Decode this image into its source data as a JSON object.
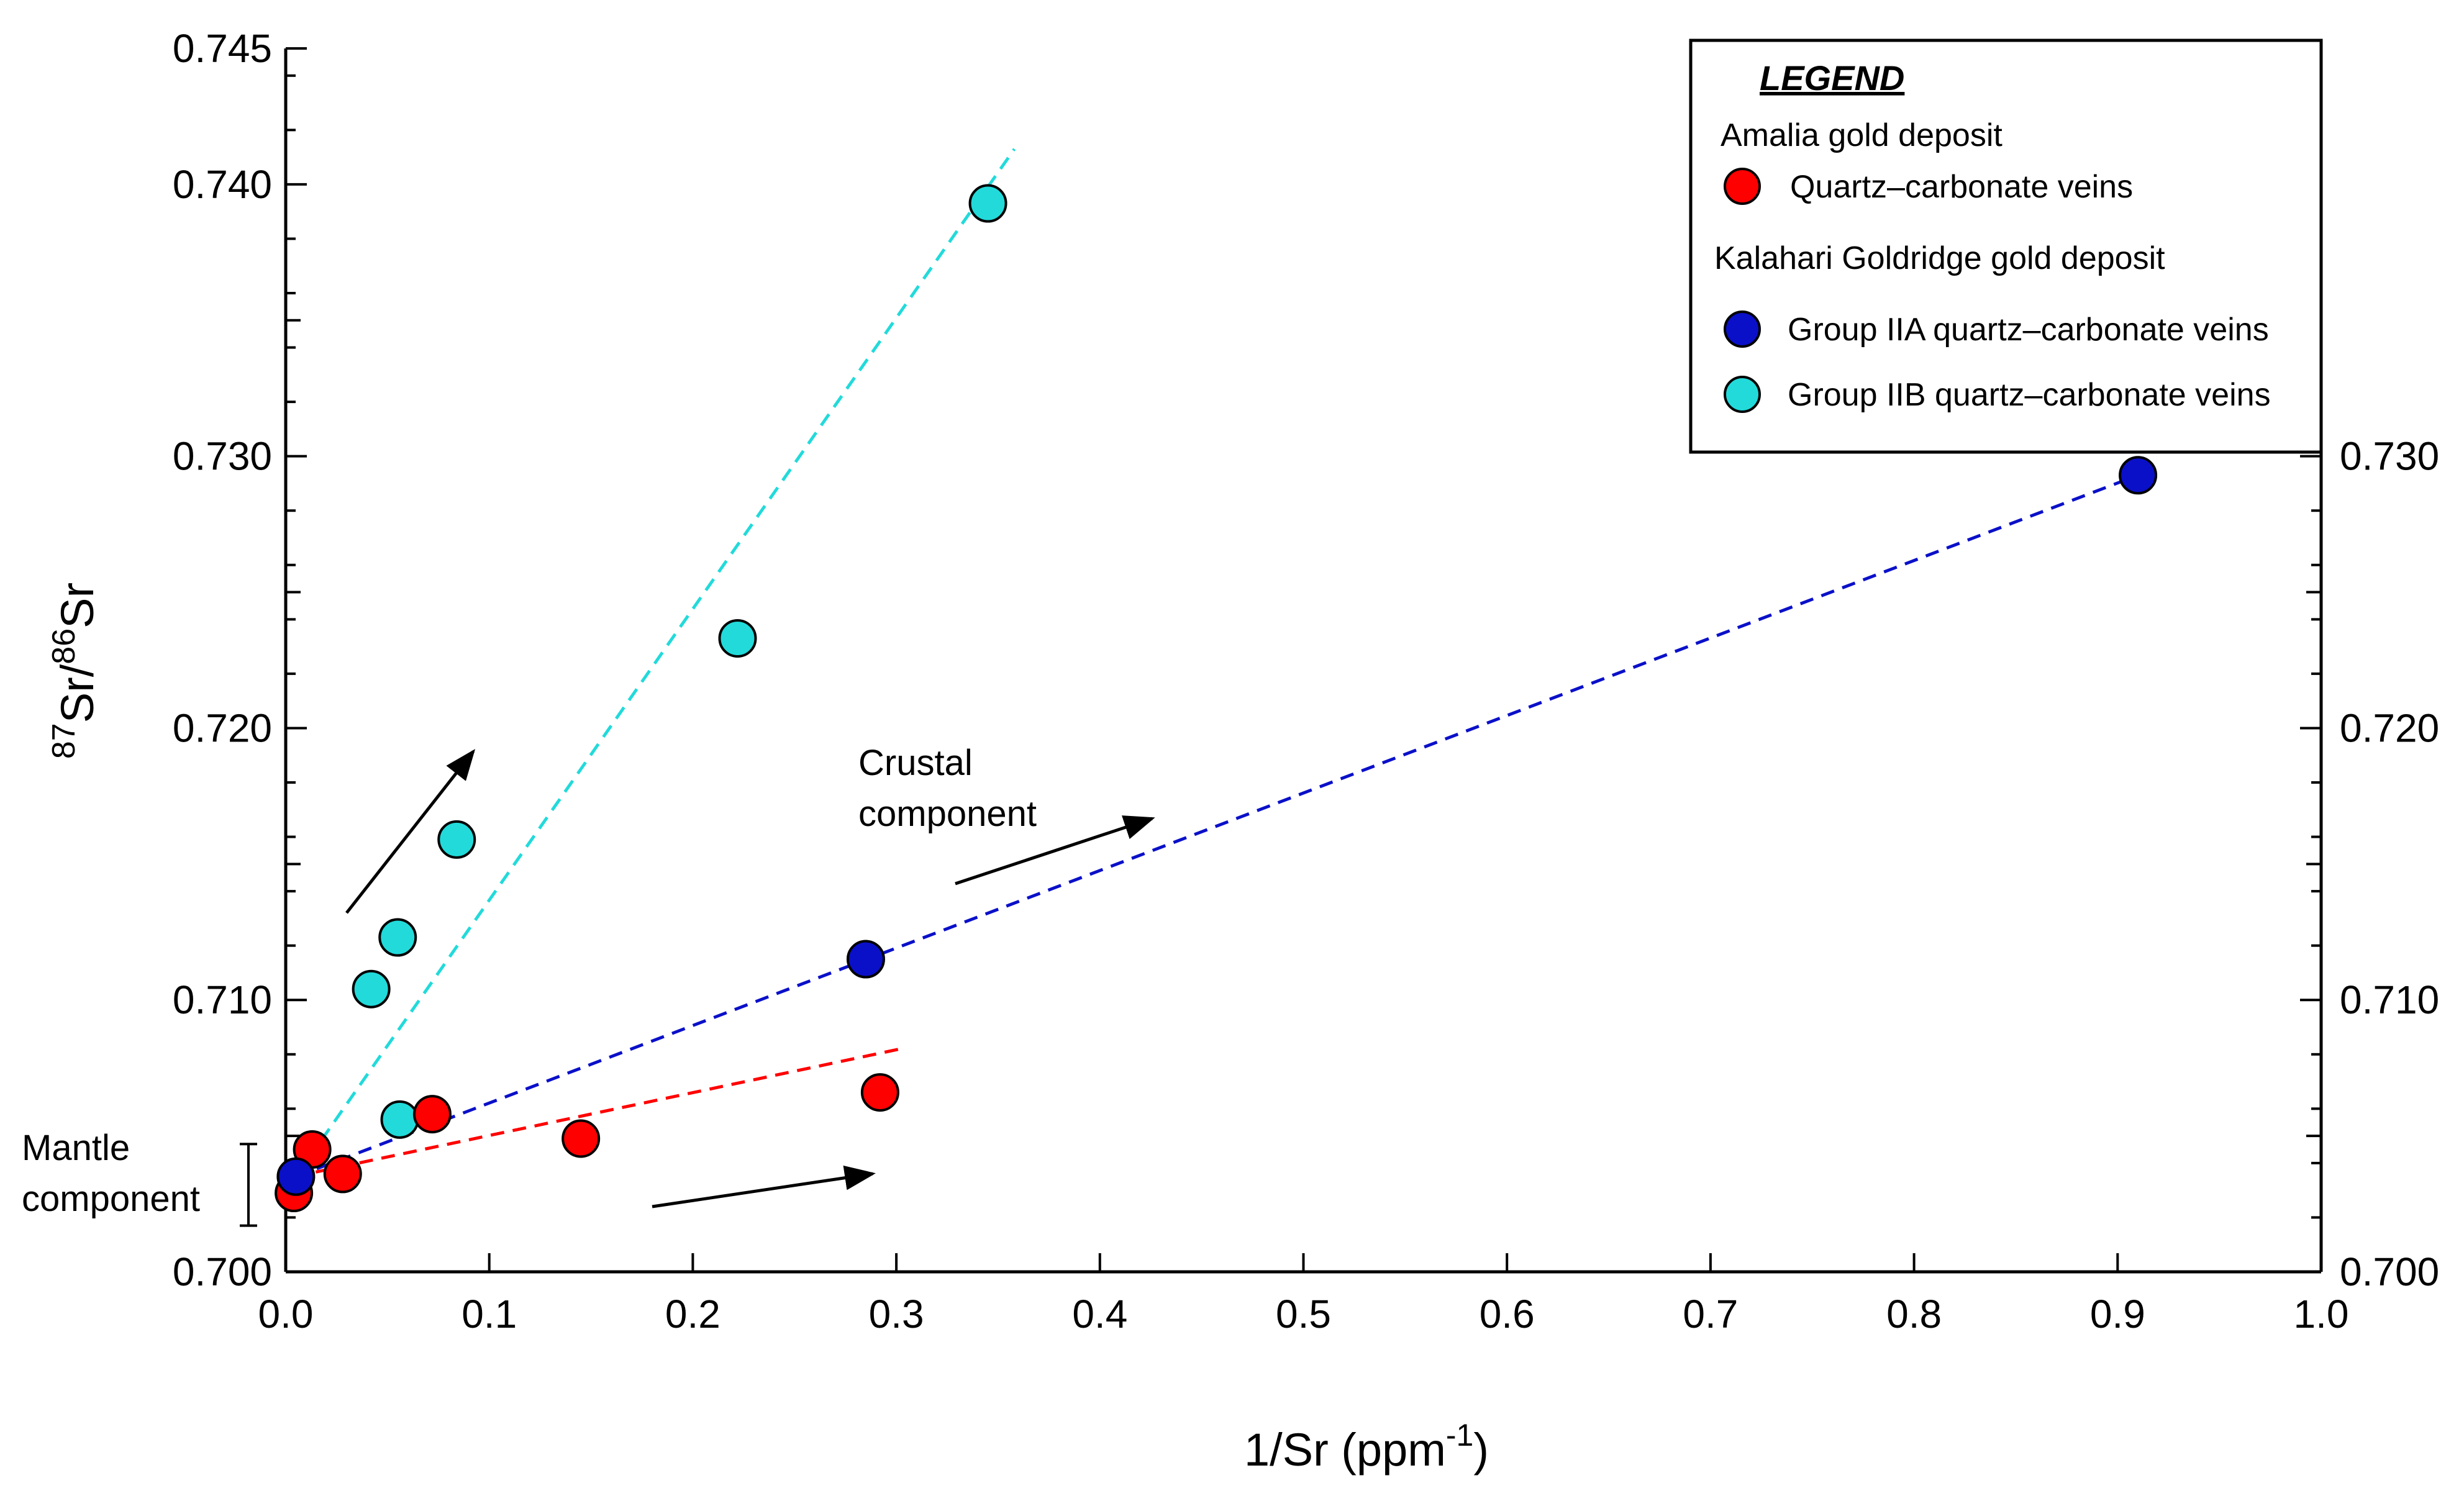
{
  "chart_data": {
    "type": "scatter",
    "xlabel": {
      "base": "1/Sr (ppm",
      "sup": "-1",
      "tail": ")"
    },
    "ylabel": {
      "sup1": "87",
      "mid": "Sr/",
      "sup2": "86",
      "tail": "Sr"
    },
    "xlim": [
      0.0,
      1.0
    ],
    "ylim": [
      0.7,
      0.745
    ],
    "x_ticks": [
      "0.0",
      "0.1",
      "0.2",
      "0.3",
      "0.4",
      "0.5",
      "0.6",
      "0.7",
      "0.8",
      "0.9",
      "1.0"
    ],
    "y_ticks": [
      "0.700",
      "0.710",
      "0.720",
      "0.730",
      "0.740",
      "0.745"
    ],
    "y_ticks_right": [
      "0.700",
      "0.710",
      "0.720",
      "0.730"
    ],
    "grid": false,
    "legend": {
      "heading": "LEGEND",
      "group1_title": "Amalia gold deposit",
      "group2_title": "Kalahari Goldridge gold deposit",
      "position": "top-right"
    },
    "series": [
      {
        "name": "Quartz–carbonate veins",
        "color": "#ff0000",
        "x": [
          0.004,
          0.013,
          0.028,
          0.072,
          0.145,
          0.292
        ],
        "y": [
          0.7029,
          0.7045,
          0.7036,
          0.7058,
          0.7049,
          0.7066
        ],
        "trend": {
          "x": [
            0.004,
            0.302
          ],
          "y": [
            0.7035,
            0.7082
          ]
        }
      },
      {
        "name": "Group IIA quartz–carbonate veins",
        "color": "#0a10c8",
        "x": [
          0.005,
          0.285,
          0.91
        ],
        "y": [
          0.7035,
          0.7115,
          0.7293
        ],
        "trend": {
          "x": [
            0.005,
            0.91
          ],
          "y": [
            0.7035,
            0.7293
          ]
        }
      },
      {
        "name": "Group IIB quartz–carbonate veins",
        "color": "#22dada",
        "x": [
          0.042,
          0.055,
          0.084,
          0.222,
          0.345,
          0.056
        ],
        "y": [
          0.7104,
          0.7123,
          0.7159,
          0.7233,
          0.7393,
          0.7056
        ],
        "trend": {
          "x": [
            0.005,
            0.358
          ],
          "y": [
            0.7035,
            0.7413
          ]
        }
      }
    ],
    "annotations": {
      "crustal": [
        "Crustal",
        "component"
      ],
      "mantle": [
        "Mantle",
        "component"
      ],
      "mantle_range": [
        0.7017,
        0.7047
      ]
    }
  }
}
